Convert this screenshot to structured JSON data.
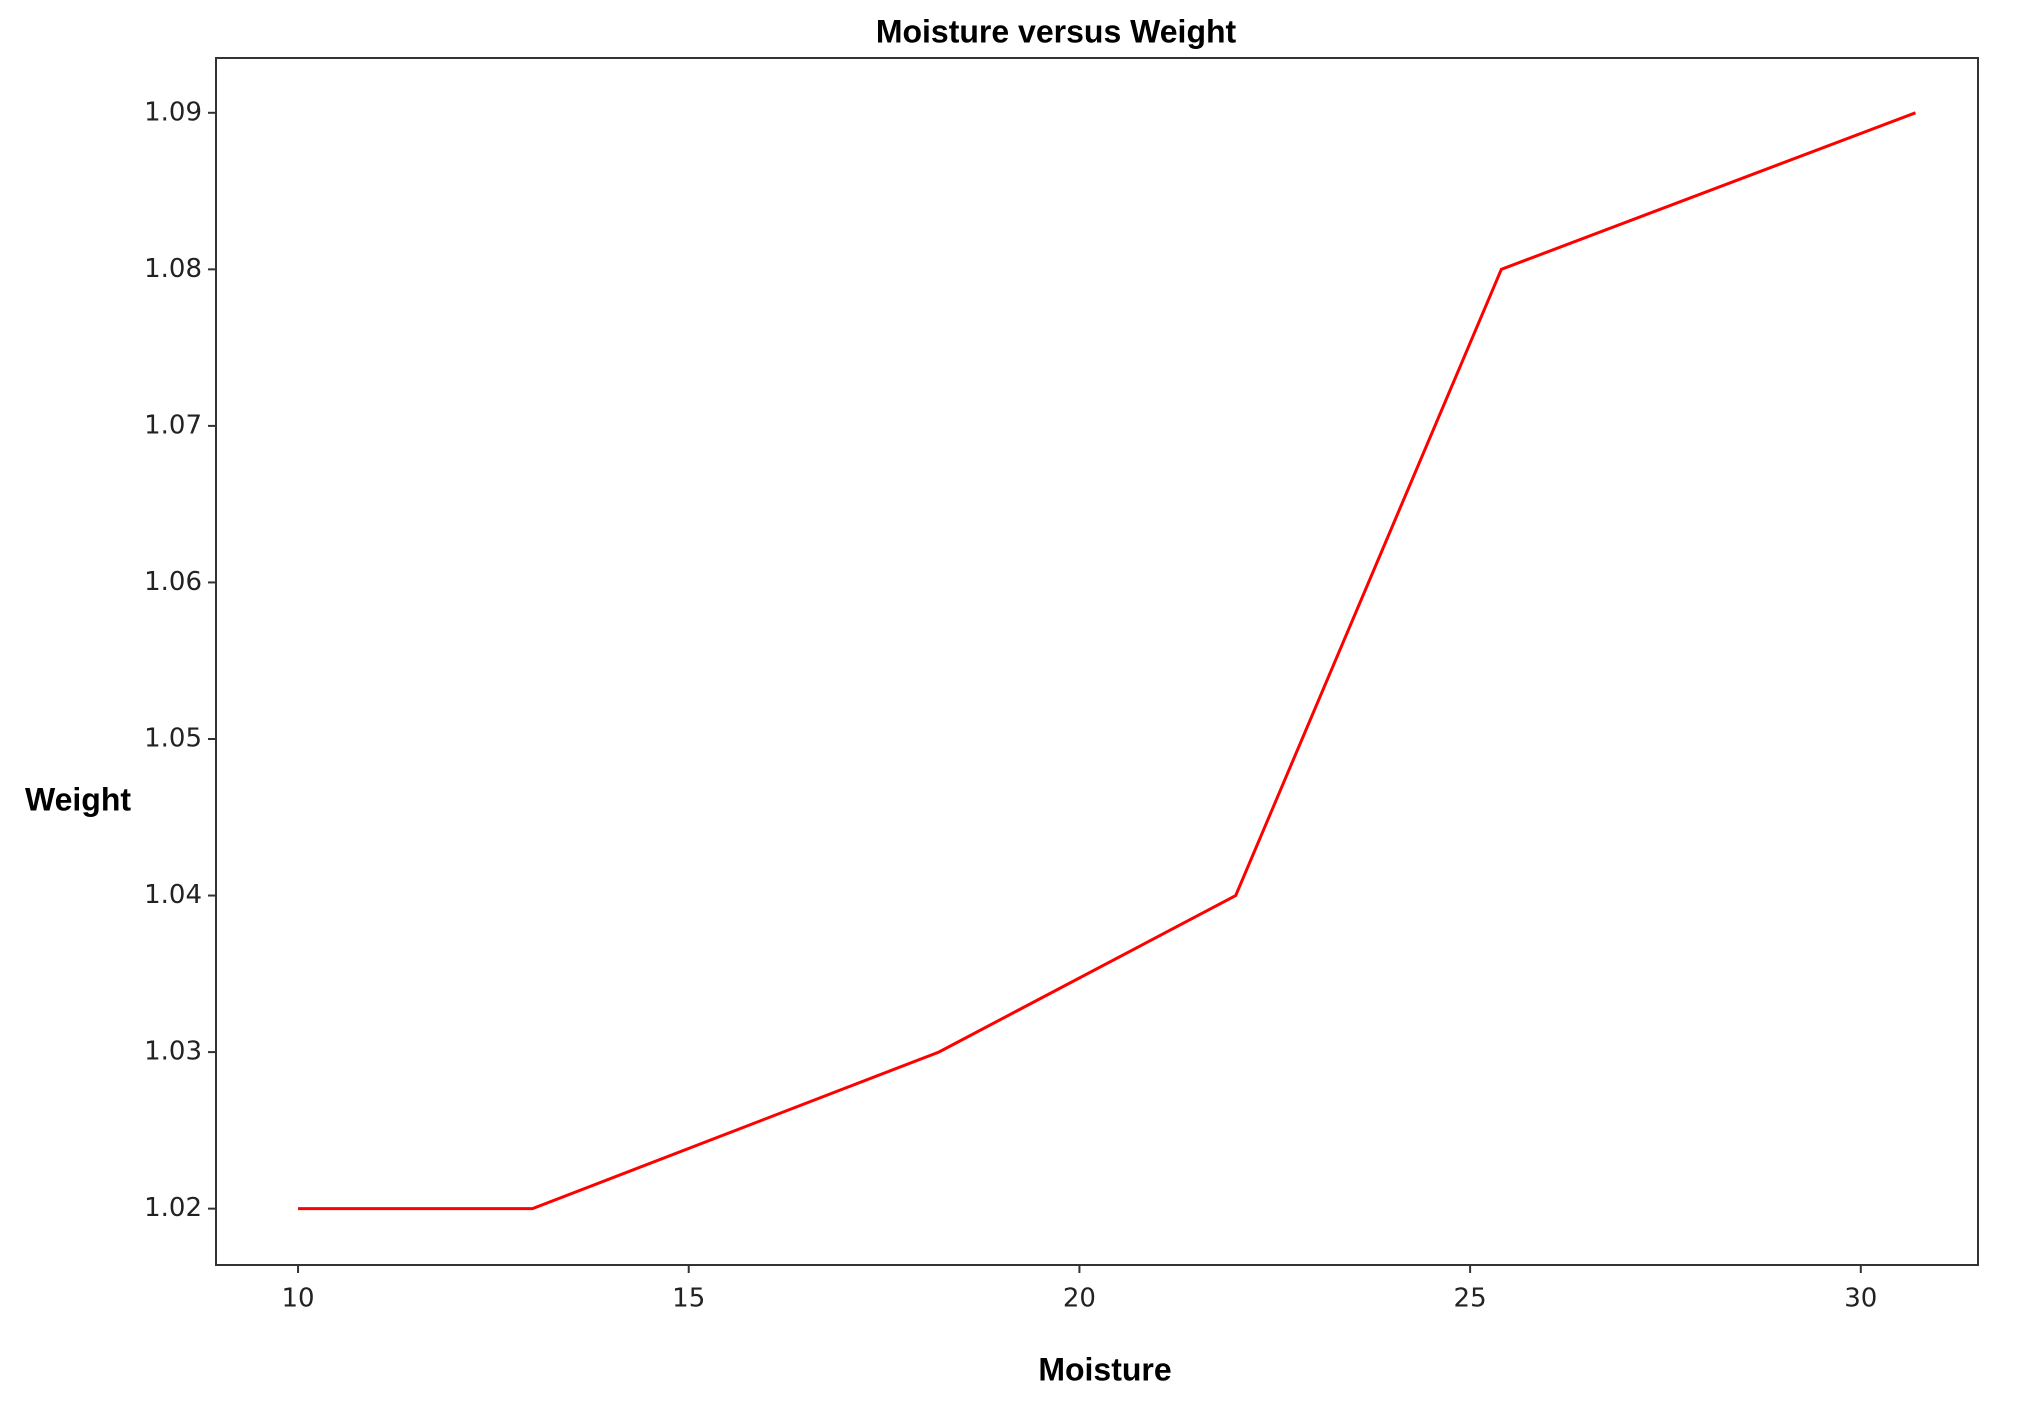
{
  "chart_data": {
    "type": "line",
    "title": "Moisture versus Weight",
    "x_label": "Moisture",
    "y_label": "Weight",
    "x": [
      10,
      13,
      18.2,
      22,
      25.4,
      30.7
    ],
    "series": [
      {
        "name": "Weight",
        "color": "#ff0000",
        "values": [
          1.02,
          1.02,
          1.03,
          1.04,
          1.08,
          1.09
        ]
      }
    ],
    "xlim": [
      8.95,
      31.5
    ],
    "xticks": [
      10,
      15,
      20,
      25,
      30
    ],
    "ylim": [
      1.0164,
      1.0935
    ],
    "yticks": [
      1.02,
      1.03,
      1.04,
      1.05,
      1.06,
      1.07,
      1.08,
      1.09
    ],
    "grid": false
  }
}
